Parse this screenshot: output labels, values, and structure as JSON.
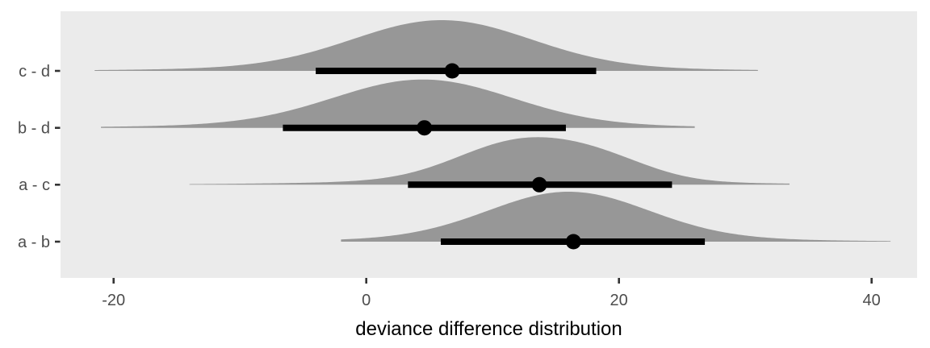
{
  "chart_data": {
    "type": "area",
    "subtype": "halfeye-density-interval",
    "title": "",
    "xlabel": "deviance difference distribution",
    "ylabel": "",
    "xlim": [
      -24.2,
      43.6
    ],
    "x_ticks": [
      -20,
      0,
      20,
      40
    ],
    "x_tick_labels": [
      "-20",
      "0",
      "20",
      "40"
    ],
    "grid": "off",
    "legend": "none",
    "categories": [
      "c - d",
      "b - d",
      "a - c",
      "a - b"
    ],
    "rows": [
      {
        "label": "c - d",
        "point_estimate": 6.8,
        "interval_66": [
          -4.0,
          18.2
        ],
        "density_range": [
          -21.5,
          31.0
        ],
        "mixture": [
          {
            "mean": 6.0,
            "sd": 7.0,
            "w": 0.85
          },
          {
            "mean": 5.0,
            "sd": 15.0,
            "w": 0.15
          }
        ]
      },
      {
        "label": "b - d",
        "point_estimate": 4.6,
        "interval_66": [
          -6.6,
          15.8
        ],
        "density_range": [
          -21.0,
          26.0
        ],
        "mixture": [
          {
            "mean": 4.5,
            "sd": 7.0,
            "w": 0.85
          },
          {
            "mean": 3.0,
            "sd": 15.0,
            "w": 0.15
          }
        ]
      },
      {
        "label": "a - c",
        "point_estimate": 13.7,
        "interval_66": [
          3.3,
          24.2
        ],
        "density_range": [
          -14.0,
          33.5
        ],
        "mixture": [
          {
            "mean": 12.2,
            "sd": 5.0,
            "w": 0.62
          },
          {
            "mean": 19.0,
            "sd": 4.0,
            "w": 0.2
          },
          {
            "mean": 12.0,
            "sd": 13.0,
            "w": 0.18
          }
        ]
      },
      {
        "label": "a - b",
        "point_estimate": 16.4,
        "interval_66": [
          5.9,
          26.8
        ],
        "density_range": [
          -2.0,
          41.5
        ],
        "mixture": [
          {
            "mean": 16.0,
            "sd": 6.3,
            "w": 0.85
          },
          {
            "mean": 16.5,
            "sd": 13.0,
            "w": 0.15
          }
        ]
      }
    ],
    "colors": {
      "panel_bg": "#EBEBEB",
      "density_fill": "#979797",
      "interval": "#000000",
      "point": "#000000",
      "axis_text": "#4D4D4D",
      "tick_mark": "#333333",
      "title_text": "#000000",
      "outer_bg": "#FFFFFF"
    }
  }
}
